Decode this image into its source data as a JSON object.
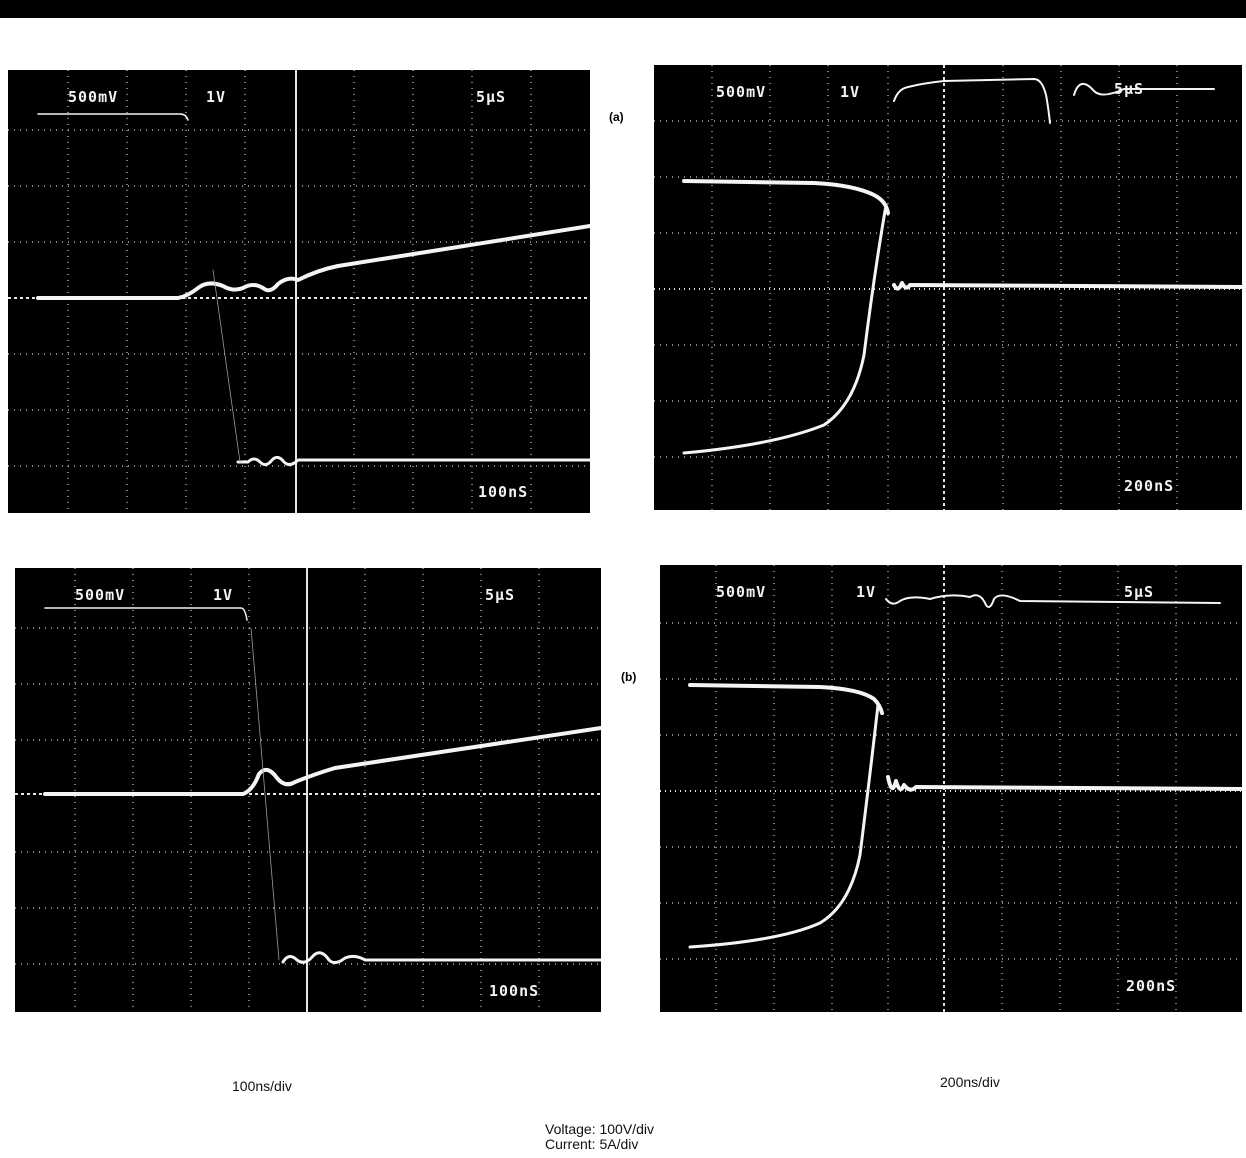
{
  "figure": {
    "panels": [
      {
        "id": "a",
        "label": "(a)",
        "left_scope": {
          "ch1": "500mV",
          "ch2": "1V",
          "timebase_main": "5µS",
          "timebase_delayed": "100nS"
        },
        "right_scope": {
          "ch1": "500mV",
          "ch2": "1V",
          "timebase_main": "5µS",
          "timebase_delayed": "200nS"
        }
      },
      {
        "id": "b",
        "label": "(b)",
        "left_scope": {
          "ch1": "500mV",
          "ch2": "1V",
          "timebase_main": "5µS",
          "timebase_delayed": "100nS"
        },
        "right_scope": {
          "ch1": "500mV",
          "ch2": "1V",
          "timebase_main": "5µS",
          "timebase_delayed": "200nS"
        }
      }
    ],
    "captions": {
      "left_column": "100ns/div",
      "right_column": "200ns/div"
    },
    "legend": {
      "voltage": "Voltage: 100V/div",
      "current": "Current: 5A/div"
    },
    "colors": {
      "screen": "#000000",
      "trace": "#f4f4f4",
      "grid": "#d9d9d9"
    }
  }
}
